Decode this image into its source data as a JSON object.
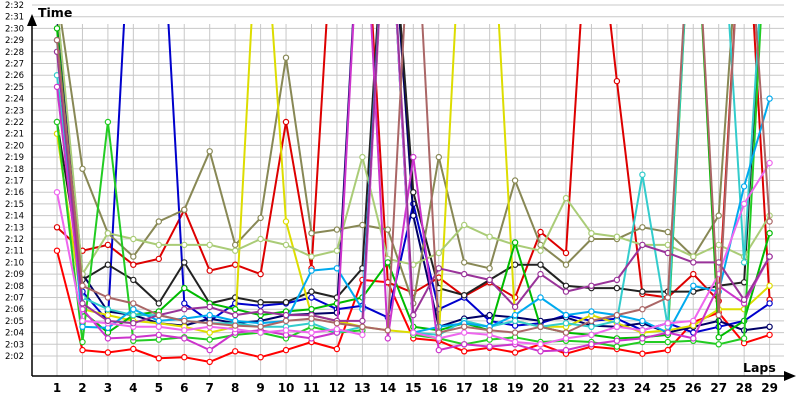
{
  "chart_data": {
    "type": "line",
    "title": "",
    "xlabel": "Laps",
    "ylabel": "Time",
    "x": [
      1,
      2,
      3,
      4,
      5,
      6,
      7,
      8,
      9,
      10,
      11,
      12,
      13,
      14,
      15,
      16,
      17,
      18,
      19,
      20,
      21,
      22,
      23,
      24,
      25,
      26,
      27,
      28,
      29
    ],
    "x_tick_labels": [
      "1",
      "2",
      "3",
      "4",
      "5",
      "6",
      "7",
      "8",
      "9",
      "10",
      "11",
      "12",
      "13",
      "14",
      "15",
      "16",
      "17",
      "18",
      "19",
      "20",
      "21",
      "22",
      "23",
      "24",
      "25",
      "26",
      "27",
      "28",
      "29"
    ],
    "y_unit": "m:ss",
    "ylim": [
      "2:01",
      "2:33"
    ],
    "y_tick_labels": [
      "2:02",
      "2:03",
      "2:04",
      "2:05",
      "2:06",
      "2:07",
      "2:08",
      "2:09",
      "2:10",
      "2:11",
      "2:12",
      "2:13",
      "2:14",
      "2:15",
      "2:16",
      "2:17",
      "2:18",
      "2:19",
      "2:20",
      "2:21",
      "2:22",
      "2:23",
      "2:24",
      "2:25",
      "2:26",
      "2:27",
      "2:28",
      "2:29",
      "2:30",
      "2:31",
      "2:32"
    ],
    "grid": true,
    "legend": "none",
    "series": [
      {
        "color": "#ff0000",
        "values": [
          "2:11",
          "2:02.5",
          "2:02.3",
          "2:02.6",
          "2:01.8",
          "2:01.9",
          "2:01.5",
          "2:02.4",
          "2:01.9",
          "2:02.5",
          "2:03.2",
          "2:02.6",
          "2:08.5",
          "2:08.3",
          "2:03.5",
          "2:03.3",
          "2:02.4",
          "2:02.7",
          "2:02.3",
          "2:03.0",
          "2:02.2",
          "2:02.8",
          "2:02.6",
          "2:02.2",
          "2:02.5",
          "2:04.9",
          "2:05.7",
          "2:03.1",
          "2:03.8"
        ]
      },
      {
        "color": "#dd0000",
        "values": [
          "2:13",
          "2:11.0",
          "2:11.5",
          "2:09.8",
          "2:10.3",
          "2:14.5",
          "2:09.3",
          "2:09.8",
          "2:09.0",
          "2:22",
          "2:09.5",
          "2:45",
          "2:45",
          "2:08.3",
          "2:07.4",
          "2:08.7",
          "2:07.1",
          "2:08.3",
          "2:07.0",
          "2:12.6",
          "2:10.8",
          "2:45",
          "2:25.5",
          "2:07.3",
          "2:07.0",
          "2:09.0",
          "2:06.7",
          "2:45",
          "2:06.8"
        ]
      },
      {
        "color": "#0000cc",
        "values": [
          "2:32",
          "2:07.5",
          "2:05.0",
          "2:45",
          "2:45",
          "2:06.5",
          "2:05.0",
          "2:06.5",
          "2:06.3",
          "2:06.5",
          "2:07.0",
          "2:06.0",
          "2:06.3",
          "2:05.3",
          "2:15",
          "2:06.0",
          "2:07.0",
          "2:05.0",
          "2:04.6",
          "2:04.8",
          "2:05.5",
          "2:05.0",
          "2:05.2",
          "2:04.2",
          "2:04.8",
          "2:04.0",
          "2:04.5",
          "2:05.0",
          "2:06.5"
        ]
      },
      {
        "color": "#000066",
        "values": [
          "2:31",
          "2:09.0",
          "2:05.8",
          "2:05.5",
          "2:04.8",
          "2:04.6",
          "2:05.2",
          "2:04.8",
          "2:05.0",
          "2:05.5",
          "2:05.6",
          "2:05.7",
          "2:45",
          "2:45",
          "2:14",
          "2:04.5",
          "2:05.2",
          "2:05.5",
          "2:05.3",
          "2:05.0",
          "2:05.3",
          "2:04.6",
          "2:04.5",
          "2:04.8",
          "2:04.0",
          "2:04.5",
          "2:05.0",
          "2:04.2",
          "2:04.5"
        ]
      },
      {
        "color": "#222222",
        "values": [
          "2:22",
          "2:08.5",
          "2:09.8",
          "2:08.5",
          "2:06.5",
          "2:10.0",
          "2:06.5",
          "2:07.0",
          "2:06.6",
          "2:06.6",
          "2:07.5",
          "2:07.0",
          "2:09.5",
          "2:45",
          "2:16",
          "2:07.8",
          "2:07.2",
          "2:08.5",
          "2:09.8",
          "2:09.8",
          "2:08.0",
          "2:07.8",
          "2:07.8",
          "2:07.5",
          "2:07.5",
          "2:07.5",
          "2:08.0",
          "2:08.3",
          "2:45"
        ]
      },
      {
        "color": "#888855",
        "values": [
          "2:33",
          "2:18",
          "2:12.5",
          "2:10.5",
          "2:13.5",
          "2:14.5",
          "2:19.5",
          "2:11.5",
          "2:13.8",
          "2:27.5",
          "2:12.5",
          "2:12.8",
          "2:13.2",
          "2:12.8",
          "2:06.5",
          "2:19",
          "2:10.0",
          "2:09.5",
          "2:17",
          "2:11.5",
          "2:09.8",
          "2:12.0",
          "2:12.0",
          "2:13.0",
          "2:12.6",
          "2:10.5",
          "2:14",
          "2:45",
          "2:45"
        ]
      },
      {
        "color": "#dddd00",
        "values": [
          "2:21",
          "2:06.0",
          "2:05.5",
          "2:05.0",
          "2:04.8",
          "2:04.5",
          "2:04.0",
          "2:04.5",
          "2:45",
          "2:13.5",
          "2:05.5",
          "2:05.0",
          "2:04.5",
          "2:04.2",
          "2:04.0",
          "2:03.5",
          "2:45",
          "2:45",
          "2:05.0",
          "2:04.5",
          "2:04.5",
          "2:05.5",
          "2:04.8",
          "2:04.0",
          "2:04.2",
          "2:04.6",
          "2:06.0",
          "2:06.0",
          "2:08.0"
        ]
      },
      {
        "color": "#aacc77",
        "values": [
          "2:32",
          "2:09.0",
          "2:12.5",
          "2:12.0",
          "2:11.5",
          "2:11.5",
          "2:11.5",
          "2:11.0",
          "2:12.0",
          "2:11.5",
          "2:10.5",
          "2:11.0",
          "2:19",
          "2:10.3",
          "2:09.8",
          "2:10.8",
          "2:13.2",
          "2:12.2",
          "2:11.5",
          "2:11.0",
          "2:15.5",
          "2:12.5",
          "2:12.2",
          "2:11.5",
          "2:11.5",
          "2:10.5",
          "2:11.5",
          "2:10.5",
          "2:14.0"
        ]
      },
      {
        "color": "#00bb00",
        "values": [
          "2:30",
          "2:05.8",
          "2:04.0",
          "2:05.5",
          "2:05.8",
          "2:07.8",
          "2:06.5",
          "2:06.0",
          "2:05.5",
          "2:05.8",
          "2:06.0",
          "2:06.5",
          "2:07.0",
          "2:10.0",
          "2:04.5",
          "2:04.2",
          "2:04.8",
          "2:04.2",
          "2:11.7",
          "2:04.5",
          "2:04.0",
          "2:03.8",
          "2:03.5",
          "2:03.6",
          "2:03.8",
          "2:45",
          "2:03.6",
          "2:05.0",
          "2:12.5"
        ]
      },
      {
        "color": "#22cc22",
        "values": [
          "2:22",
          "2:03.2",
          "2:22",
          "2:03.3",
          "2:03.4",
          "2:03.6",
          "2:03.4",
          "2:03.8",
          "2:04.0",
          "2:03.5",
          "2:04.5",
          "2:04.0",
          "2:04.2",
          "2:45",
          "2:03.8",
          "2:03.5",
          "2:03.0",
          "2:03.4",
          "2:03.6",
          "2:03.2",
          "2:03.3",
          "2:03.2",
          "2:02.8",
          "2:03.2",
          "2:03.2",
          "2:03.3",
          "2:03.0",
          "2:03.5",
          "2:45"
        ]
      },
      {
        "color": "#33cccc",
        "values": [
          "2:26",
          "2:07.0",
          "2:06.0",
          "2:05.5",
          "2:05.5",
          "2:05.0",
          "2:04.8",
          "2:04.8",
          "2:04.5",
          "2:04.5",
          "2:04.8",
          "2:04.0",
          "2:04.5",
          "2:45",
          "2:04.0",
          "2:03.8",
          "2:05.0",
          "2:04.5",
          "2:05.0",
          "2:04.5",
          "2:04.8",
          "2:04.5",
          "2:05.0",
          "2:17.5",
          "2:04.5",
          "2:45",
          "2:45",
          "2:10.0",
          "2:45"
        ]
      },
      {
        "color": "#00aaee",
        "values": [
          "2:29",
          "2:04.5",
          "2:04.4",
          "2:06.0",
          "2:05.0",
          "2:05.2",
          "2:05.5",
          "2:05.0",
          "2:04.8",
          "2:05.0",
          "2:09.3",
          "2:09.5",
          "2:06.0",
          "2:45",
          "2:04.0",
          "2:04.5",
          "2:04.8",
          "2:04.5",
          "2:05.5",
          "2:07.0",
          "2:05.5",
          "2:05.8",
          "2:05.5",
          "2:05.0",
          "2:04.0",
          "2:08.0",
          "2:07.5",
          "2:16.5",
          "2:24"
        ]
      },
      {
        "color": "#cc33cc",
        "values": [
          "2:25",
          "2:06.0",
          "2:03.5",
          "2:03.6",
          "2:03.8",
          "2:03.5",
          "2:02.5",
          "2:04.0",
          "2:04.2",
          "2:03.8",
          "2:03.5",
          "2:04.0",
          "2:45",
          "2:03.5",
          "2:19",
          "2:02.5",
          "2:03.0",
          "2:02.8",
          "2:03.0",
          "2:02.4",
          "2:02.5",
          "2:03.0",
          "2:03.3",
          "2:03.5",
          "2:04.0",
          "2:03.5",
          "2:08.0",
          "2:06.5",
          "2:10.5"
        ]
      },
      {
        "color": "#ee66ee",
        "values": [
          "2:16",
          "2:05.0",
          "2:04.8",
          "2:04.5",
          "2:04.5",
          "2:04.2",
          "2:04.5",
          "2:04.3",
          "2:04.0",
          "2:04.2",
          "2:04.0",
          "2:04.3",
          "2:03.8",
          "2:45",
          "2:04.0",
          "2:03.5",
          "2:04.0",
          "2:03.8",
          "2:03.2",
          "2:03.0",
          "2:03.5",
          "2:03.8",
          "2:04.5",
          "2:04.2",
          "2:04.8",
          "2:05.0",
          "2:09.0",
          "2:15.0",
          "2:18.5"
        ]
      },
      {
        "color": "#993399",
        "values": [
          "2:28",
          "2:06.5",
          "2:05.0",
          "2:04.8",
          "2:05.5",
          "2:06.0",
          "2:06.2",
          "2:05.5",
          "2:05.8",
          "2:05.5",
          "2:05.5",
          "2:05.0",
          "2:05.0",
          "2:45",
          "2:05.5",
          "2:09.5",
          "2:09.0",
          "2:08.5",
          "2:06.2",
          "2:09.0",
          "2:07.5",
          "2:08.0",
          "2:08.5",
          "2:11.5",
          "2:10.8",
          "2:10.0",
          "2:10.0",
          "2:06.8",
          "2:10.5"
        ]
      },
      {
        "color": "#aa6666",
        "values": [
          "2:29",
          "2:08.0",
          "2:07.0",
          "2:06.5",
          "2:05.5",
          "2:05.0",
          "2:04.8",
          "2:04.6",
          "2:04.5",
          "2:05.0",
          "2:05.2",
          "2:04.8",
          "2:04.5",
          "2:04.2",
          "2:45",
          "2:04.0",
          "2:04.5",
          "2:04.2",
          "2:04.0",
          "2:04.5",
          "2:04.0",
          "2:05.0",
          "2:05.5",
          "2:06.0",
          "2:07.0",
          "2:45",
          "2:05.5",
          "2:45",
          "2:13.5"
        ]
      }
    ]
  }
}
